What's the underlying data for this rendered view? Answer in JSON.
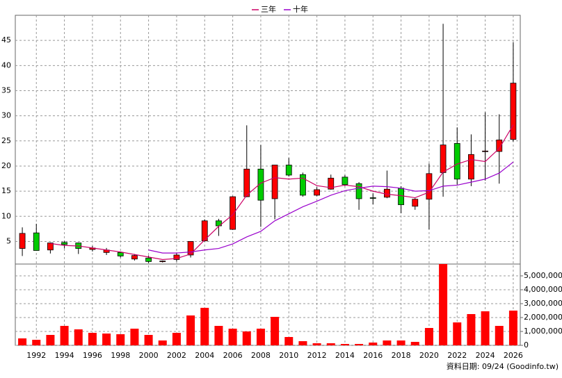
{
  "chart_data": {
    "type": "candlestick",
    "x": [
      1991,
      1992,
      1993,
      1994,
      1995,
      1996,
      1997,
      1998,
      1999,
      2000,
      2001,
      2002,
      2003,
      2004,
      2005,
      2006,
      2007,
      2008,
      2009,
      2010,
      2011,
      2012,
      2013,
      2014,
      2015,
      2016,
      2017,
      2018,
      2019,
      2020,
      2021,
      2022,
      2023,
      2024,
      2025,
      2026
    ],
    "xlim": [
      1990.5,
      2026.5
    ],
    "xticks": [
      1992,
      1994,
      1996,
      1998,
      2000,
      2002,
      2004,
      2006,
      2008,
      2010,
      2012,
      2014,
      2016,
      2018,
      2020,
      2022,
      2024,
      2026
    ],
    "ylim": [
      0.5,
      50
    ],
    "yticks": [
      5,
      10,
      15,
      20,
      25,
      30,
      35,
      40,
      45
    ],
    "y2lim": [
      0,
      5850000
    ],
    "y2ticks": [
      {
        "value": 0,
        "label": "0"
      },
      {
        "value": 1000000,
        "label": "1,000,000"
      },
      {
        "value": 2000000,
        "label": "2,000,000"
      },
      {
        "value": 3000000,
        "label": "3,000,000"
      },
      {
        "value": 4000000,
        "label": "4,000,000"
      },
      {
        "value": 5000000,
        "label": "5,000,000"
      }
    ],
    "grid": true,
    "up_color": "#ff0000",
    "down_color": "#00cc00",
    "open": [
      3.6,
      6.7,
      3.3,
      4.8,
      4.7,
      3.4,
      2.8,
      2.8,
      1.5,
      1.7,
      1.0,
      1.4,
      2.3,
      5.1,
      9.1,
      7.4,
      13.9,
      19.4,
      13.5,
      20.2,
      18.3,
      14.2,
      15.4,
      17.8,
      16.5,
      13.7,
      13.8,
      15.6,
      12.0,
      13.4,
      18.7,
      24.5,
      17.4,
      22.9,
      22.9,
      25.3
    ],
    "high": [
      7.8,
      8.5,
      4.8,
      5.1,
      4.8,
      4.1,
      3.7,
      3.0,
      2.5,
      2.2,
      1.2,
      2.8,
      5.0,
      9.4,
      9.5,
      14.0,
      28.1,
      24.2,
      20.2,
      21.6,
      18.7,
      15.8,
      18.3,
      18.2,
      16.8,
      14.6,
      19.1,
      16.0,
      13.6,
      20.5,
      48.3,
      27.7,
      26.3,
      30.7,
      30.3,
      44.6
    ],
    "low": [
      2.1,
      3.2,
      2.6,
      3.6,
      2.5,
      3.0,
      2.3,
      1.8,
      1.2,
      0.7,
      0.8,
      1.0,
      1.8,
      5.0,
      6.1,
      7.3,
      13.8,
      7.9,
      9.4,
      17.9,
      13.9,
      14.0,
      15.3,
      16.0,
      11.3,
      12.4,
      13.6,
      10.6,
      11.3,
      7.4,
      13.9,
      16.3,
      16.0,
      17.1,
      16.5,
      24.9
    ],
    "close": [
      6.6,
      3.2,
      4.7,
      4.4,
      3.6,
      3.7,
      3.3,
      2.1,
      2.2,
      1.0,
      1.1,
      2.3,
      5.0,
      9.1,
      8.1,
      13.9,
      19.4,
      13.2,
      20.2,
      18.2,
      14.2,
      15.3,
      17.6,
      16.3,
      13.5,
      13.6,
      15.4,
      12.3,
      13.4,
      18.5,
      24.2,
      17.4,
      22.3,
      23.0,
      25.2,
      36.5
    ],
    "series": [
      {
        "name": "三年",
        "color": "#cc0066",
        "values": [
          null,
          null,
          4.6,
          4.2,
          4.1,
          3.7,
          3.3,
          2.9,
          2.4,
          1.9,
          1.4,
          1.6,
          2.5,
          5.3,
          8.0,
          10.3,
          14.2,
          16.6,
          17.7,
          17.4,
          17.6,
          16.1,
          15.7,
          16.2,
          15.9,
          15.0,
          14.4,
          14.1,
          13.7,
          14.8,
          18.8,
          20.4,
          21.3,
          20.9,
          23.5,
          28.2
        ]
      },
      {
        "name": "十年",
        "color": "#9900cc",
        "values": [
          null,
          null,
          null,
          null,
          null,
          null,
          null,
          null,
          null,
          3.3,
          2.7,
          2.7,
          2.9,
          3.3,
          3.6,
          4.5,
          5.9,
          7.0,
          9.1,
          10.5,
          11.9,
          13.0,
          14.2,
          15.1,
          15.6,
          16.0,
          15.9,
          15.6,
          15.0,
          15.1,
          16.0,
          16.2,
          16.8,
          17.4,
          18.6,
          20.8
        ]
      },
      {
        "name": "volume",
        "axis": "y2",
        "color": "#ff0000",
        "values": [
          500000,
          400000,
          750000,
          1400000,
          1150000,
          900000,
          850000,
          800000,
          1200000,
          750000,
          350000,
          900000,
          2150000,
          2700000,
          1400000,
          1200000,
          1000000,
          1200000,
          2050000,
          600000,
          300000,
          150000,
          150000,
          100000,
          100000,
          200000,
          350000,
          350000,
          250000,
          1250000,
          5850000,
          1650000,
          2250000,
          2450000,
          1400000,
          2500000
        ]
      }
    ],
    "source": "資料日期: 09/24 (Goodinfo.tw)"
  }
}
